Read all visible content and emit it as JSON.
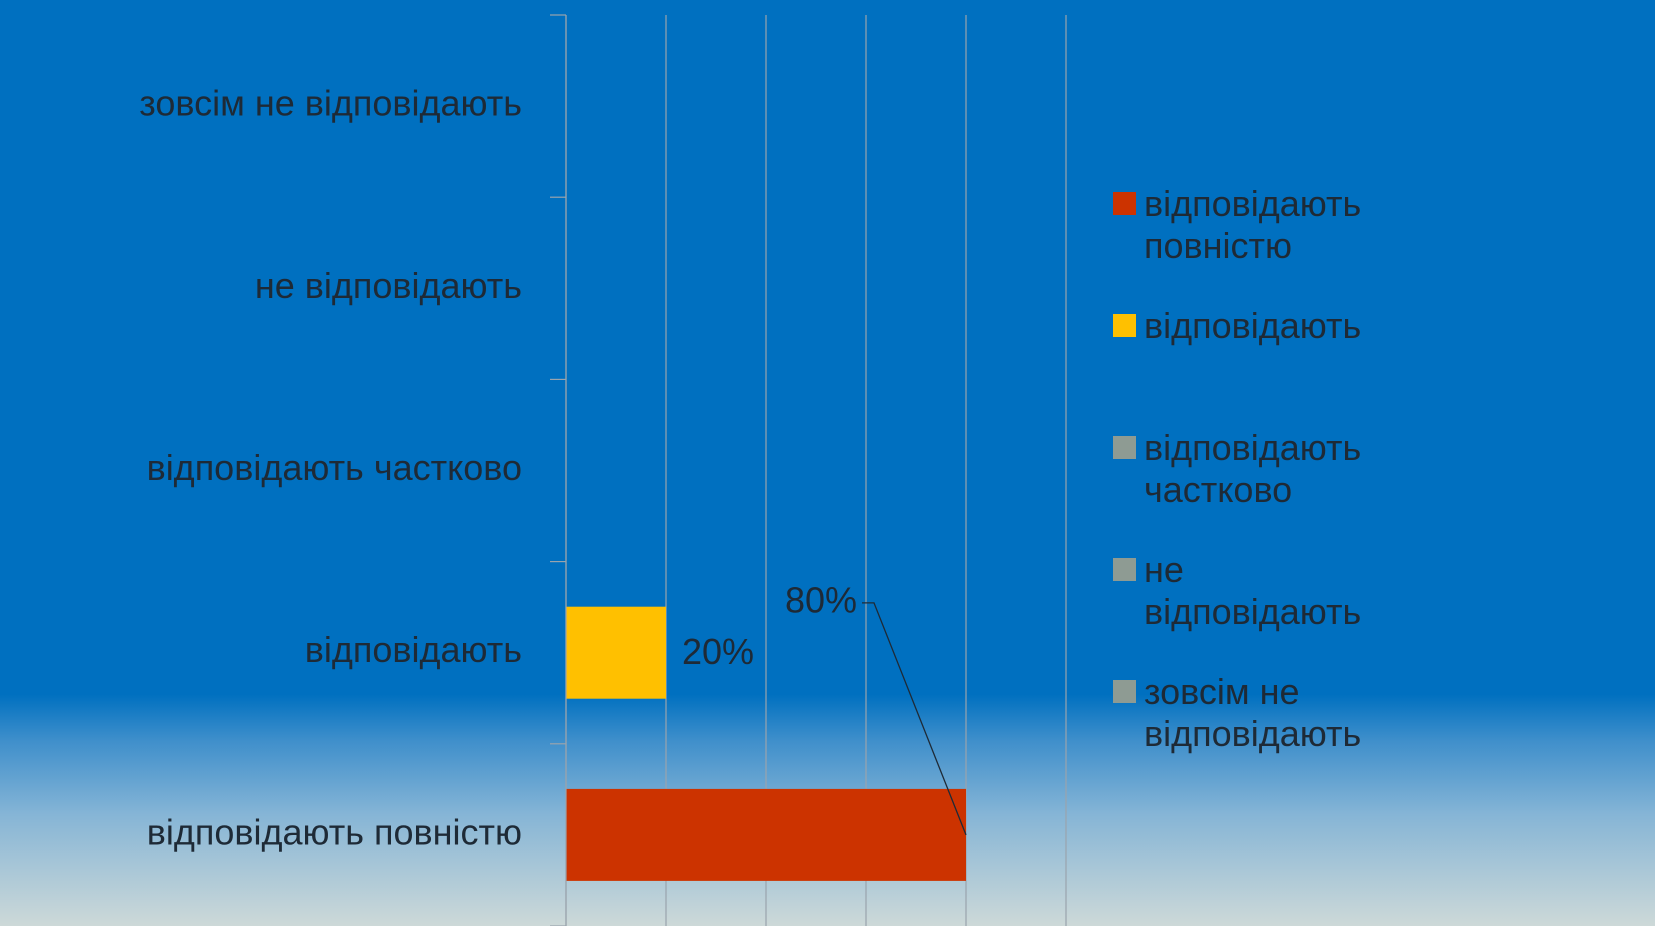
{
  "chart_data": {
    "type": "barh",
    "categories": [
      "відповідають повністю",
      "відповідають",
      "відповідають частково",
      "не відповідають",
      "зовсім не відповідають"
    ],
    "values": [
      80,
      20,
      0,
      0,
      0
    ],
    "value_labels": [
      "80%",
      "20%",
      null,
      null,
      null
    ],
    "colors": [
      "#cc3300",
      "#ffc000",
      "#8e9b93",
      "#8e9b93",
      "#8e9b93"
    ],
    "xlim": [
      0,
      100
    ],
    "xticks": [
      0,
      20,
      40,
      60,
      80,
      100
    ],
    "grid": true,
    "legend": "right"
  }
}
